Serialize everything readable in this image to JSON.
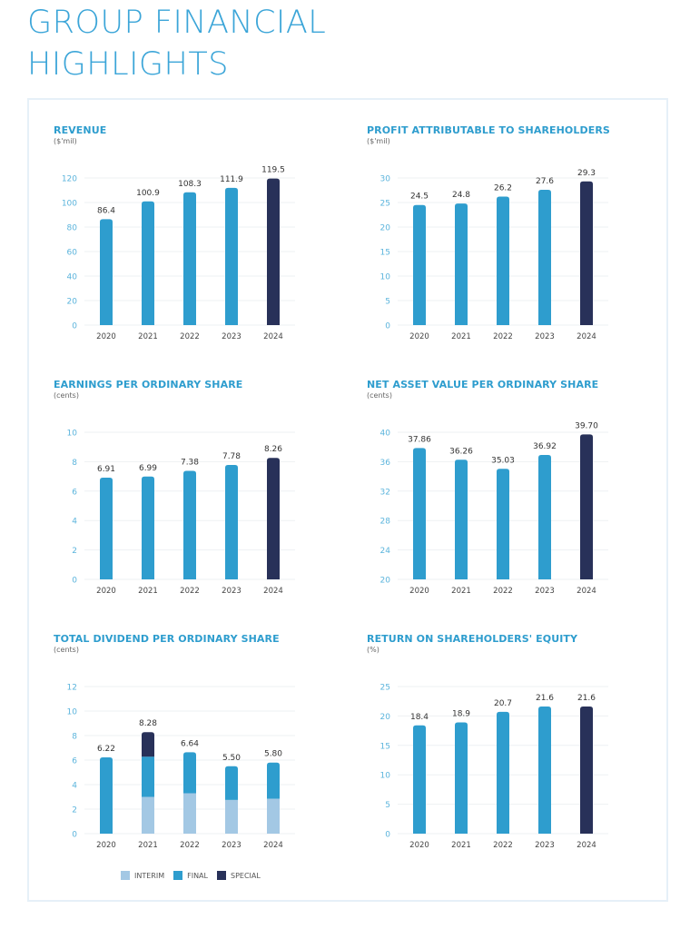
{
  "page": {
    "title": "GROUP FINANCIAL HIGHLIGHTS"
  },
  "colors": {
    "regular_bar": "#2e9dce",
    "latest_bar": "#283159",
    "interim": "#a3c8e4",
    "final": "#2e9dce",
    "special": "#283159",
    "title": "#2e9dce",
    "tick": "#5bb4dc",
    "grid": "#eef1f3"
  },
  "legend": {
    "items": [
      {
        "label": "INTERIM",
        "key": "interim"
      },
      {
        "label": "FINAL",
        "key": "final"
      },
      {
        "label": "SPECIAL",
        "key": "special"
      }
    ]
  },
  "chart_data": [
    {
      "id": "revenue",
      "type": "bar",
      "title": "REVENUE",
      "unit": "($'mil)",
      "categories": [
        "2020",
        "2021",
        "2022",
        "2023",
        "2024"
      ],
      "values": [
        86.4,
        100.9,
        108.3,
        111.9,
        119.5
      ],
      "labels": [
        "86.4",
        "100.9",
        "108.3",
        "111.9",
        "119.5"
      ],
      "ylim": [
        0,
        120
      ],
      "yticks": [
        0,
        20,
        40,
        60,
        80,
        100,
        120
      ],
      "grid": true,
      "highlight_last": true
    },
    {
      "id": "profit",
      "type": "bar",
      "title": "PROFIT ATTRIBUTABLE TO SHAREHOLDERS",
      "unit": "($'mil)",
      "categories": [
        "2020",
        "2021",
        "2022",
        "2023",
        "2024"
      ],
      "values": [
        24.5,
        24.8,
        26.2,
        27.6,
        29.3
      ],
      "labels": [
        "24.5",
        "24.8",
        "26.2",
        "27.6",
        "29.3"
      ],
      "ylim": [
        0,
        30
      ],
      "yticks": [
        0,
        5,
        10,
        15,
        20,
        25,
        30
      ],
      "grid": true,
      "highlight_last": true
    },
    {
      "id": "eps",
      "type": "bar",
      "title": "EARNINGS PER ORDINARY SHARE",
      "unit": "(cents)",
      "categories": [
        "2020",
        "2021",
        "2022",
        "2023",
        "2024"
      ],
      "values": [
        6.91,
        6.99,
        7.38,
        7.78,
        8.26
      ],
      "labels": [
        "6.91",
        "6.99",
        "7.38",
        "7.78",
        "8.26"
      ],
      "ylim": [
        0,
        10
      ],
      "yticks": [
        0,
        2,
        4,
        6,
        8,
        10
      ],
      "grid": true,
      "highlight_last": true
    },
    {
      "id": "nav",
      "type": "bar",
      "title": "NET ASSET VALUE PER ORDINARY SHARE",
      "unit": "(cents)",
      "categories": [
        "2020",
        "2021",
        "2022",
        "2023",
        "2024"
      ],
      "values": [
        37.86,
        36.26,
        35.03,
        36.92,
        39.7
      ],
      "labels": [
        "37.86",
        "36.26",
        "35.03",
        "36.92",
        "39.70"
      ],
      "ylim": [
        20,
        40
      ],
      "yticks": [
        20,
        24,
        28,
        32,
        36,
        40
      ],
      "grid": true,
      "highlight_last": true
    },
    {
      "id": "dividend",
      "type": "bar",
      "stacked": true,
      "title": "TOTAL DIVIDEND PER ORDINARY SHARE",
      "unit": "(cents)",
      "categories": [
        "2020",
        "2021",
        "2022",
        "2023",
        "2024"
      ],
      "series": [
        {
          "name": "INTERIM",
          "key": "interim",
          "values": [
            0,
            3.0,
            3.3,
            2.75,
            2.85
          ]
        },
        {
          "name": "FINAL",
          "key": "final",
          "values": [
            6.22,
            3.28,
            3.34,
            2.75,
            2.95
          ]
        },
        {
          "name": "SPECIAL",
          "key": "special",
          "values": [
            0,
            2.0,
            0,
            0,
            0
          ]
        }
      ],
      "totals": [
        6.22,
        8.28,
        6.64,
        5.5,
        5.8
      ],
      "labels": [
        "6.22",
        "8.28",
        "6.64",
        "5.50",
        "5.80"
      ],
      "ylim": [
        0,
        12
      ],
      "yticks": [
        0,
        2,
        4,
        6,
        8,
        10,
        12
      ],
      "grid": true,
      "legend": "bottom"
    },
    {
      "id": "roe",
      "type": "bar",
      "title": "RETURN ON SHAREHOLDERS' EQUITY",
      "unit": "(%)",
      "categories": [
        "2020",
        "2021",
        "2022",
        "2023",
        "2024"
      ],
      "values": [
        18.4,
        18.9,
        20.7,
        21.6,
        21.6
      ],
      "labels": [
        "18.4",
        "18.9",
        "20.7",
        "21.6",
        "21.6"
      ],
      "ylim": [
        0,
        25
      ],
      "yticks": [
        0,
        5,
        10,
        15,
        20,
        25
      ],
      "grid": true,
      "highlight_last": true
    }
  ]
}
